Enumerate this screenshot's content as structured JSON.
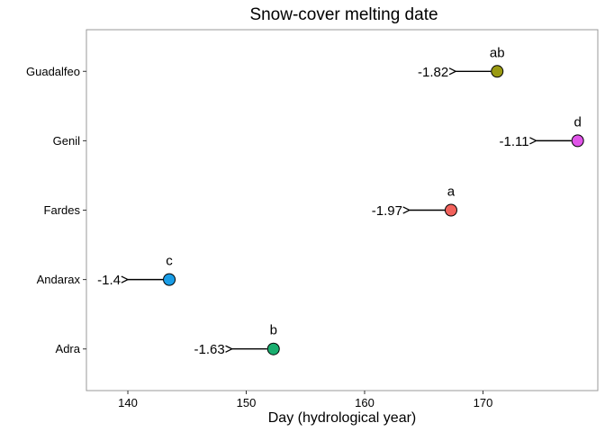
{
  "chart_data": {
    "type": "scatter",
    "title": "Snow-cover melting date",
    "xlabel": "Day (hydrological year)",
    "ylabel": "",
    "xlim": [
      136.5,
      179.7
    ],
    "xticks": [
      140,
      150,
      160,
      170
    ],
    "categories": [
      "Adra",
      "Andarax",
      "Fardes",
      "Genil",
      "Guadalfeo"
    ],
    "points": [
      {
        "category": "Adra",
        "x": 152.3,
        "value_label": "-1.63",
        "group": "b",
        "color": "#1aae6f"
      },
      {
        "category": "Andarax",
        "x": 143.5,
        "value_label": "-1.4",
        "group": "c",
        "color": "#1a9de6"
      },
      {
        "category": "Fardes",
        "x": 167.3,
        "value_label": "-1.97",
        "group": "a",
        "color": "#f2625c"
      },
      {
        "category": "Genil",
        "x": 178.0,
        "value_label": "-1.11",
        "group": "d",
        "color": "#e055e8"
      },
      {
        "category": "Guadalfeo",
        "x": 171.2,
        "value_label": "-1.82",
        "group": "ab",
        "color": "#9a9a12"
      }
    ],
    "arrow_length_days": 3.5,
    "grid": false,
    "legend": "none"
  }
}
